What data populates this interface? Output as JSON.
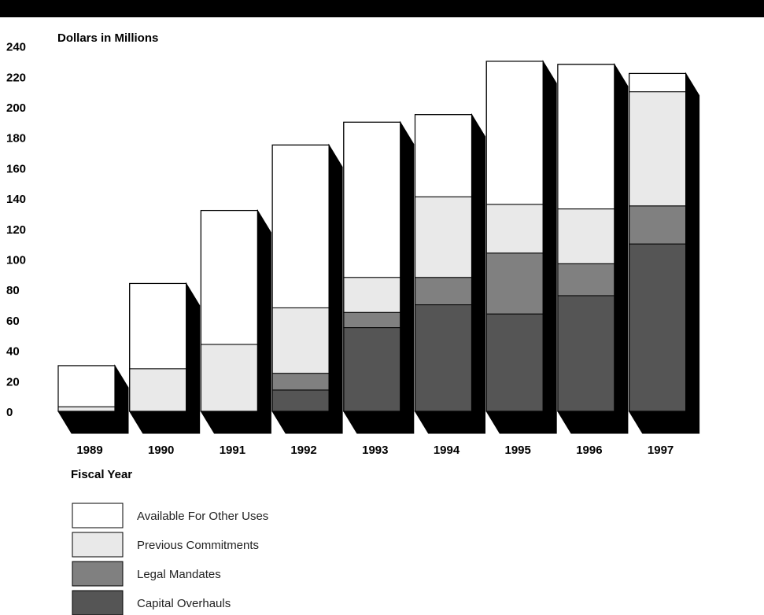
{
  "chart_data": {
    "type": "bar",
    "stacked": true,
    "three_d": true,
    "title": "",
    "ylabel": "Dollars in Millions",
    "xlabel": "Fiscal Year",
    "ylim": [
      0,
      240
    ],
    "yticks": [
      0,
      20,
      40,
      60,
      80,
      100,
      120,
      140,
      160,
      180,
      200,
      220,
      240
    ],
    "categories": [
      "1989",
      "1990",
      "1991",
      "1992",
      "1993",
      "1994",
      "1995",
      "1996",
      "1997"
    ],
    "series": [
      {
        "name": "Capital Overhauls",
        "color": "#555555",
        "values": [
          0,
          0,
          0,
          14,
          55,
          70,
          64,
          76,
          110
        ]
      },
      {
        "name": "Legal Mandates",
        "color": "#808080",
        "values": [
          0,
          0,
          0,
          11,
          10,
          18,
          40,
          21,
          25
        ]
      },
      {
        "name": "Previous Commitments",
        "color": "#e9e9e9",
        "values": [
          3,
          28,
          44,
          43,
          23,
          53,
          32,
          36,
          75
        ]
      },
      {
        "name": "Available For Other Uses",
        "color": "#ffffff",
        "values": [
          27,
          56,
          88,
          107,
          102,
          54,
          94,
          95,
          12
        ]
      }
    ],
    "legend_order": [
      "Available For Other Uses",
      "Previous Commitments",
      "Legal Mandates",
      "Capital Overhauls"
    ],
    "legend_position": "bottom-left",
    "grid": false
  }
}
